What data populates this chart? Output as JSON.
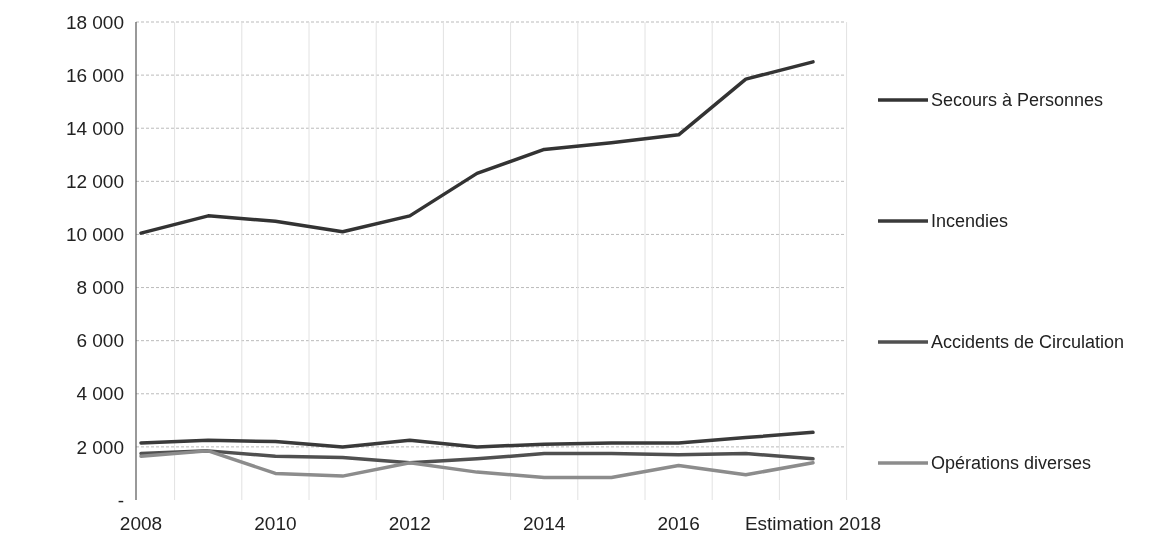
{
  "chart_data": {
    "type": "line",
    "categories": [
      "2008",
      null,
      "2010",
      null,
      "2012",
      null,
      "2014",
      null,
      "2016",
      null,
      "Estimation 2018"
    ],
    "series": [
      {
        "name": "Secours à Personnes",
        "color": "#333333",
        "values": [
          10050,
          10700,
          10500,
          10100,
          10700,
          12300,
          13200,
          13450,
          13750,
          15850,
          16500
        ]
      },
      {
        "name": "Incendies",
        "color": "#3a3a3a",
        "values": [
          2150,
          2250,
          2200,
          2000,
          2250,
          2000,
          2100,
          2150,
          2150,
          2350,
          2550
        ]
      },
      {
        "name": "Accidents de Circulation",
        "color": "#505050",
        "values": [
          1750,
          1850,
          1650,
          1600,
          1400,
          1550,
          1750,
          1750,
          1700,
          1750,
          1550
        ]
      },
      {
        "name": "Opérations diverses",
        "color": "#8c8c8c",
        "values": [
          1650,
          1850,
          1000,
          900,
          1400,
          1050,
          850,
          850,
          1300,
          950,
          1400
        ]
      }
    ],
    "ylim": [
      0,
      18000
    ],
    "yticks": [
      {
        "value": 0,
        "label": "-"
      },
      {
        "value": 2000,
        "label": "2 000"
      },
      {
        "value": 4000,
        "label": "4 000"
      },
      {
        "value": 6000,
        "label": "6 000"
      },
      {
        "value": 8000,
        "label": "8 000"
      },
      {
        "value": 10000,
        "label": "10 000"
      },
      {
        "value": 12000,
        "label": "12 000"
      },
      {
        "value": 14000,
        "label": "14 000"
      },
      {
        "value": 16000,
        "label": "16 000"
      },
      {
        "value": 18000,
        "label": "18 000"
      }
    ],
    "grid": true,
    "legend": "right",
    "marker": "none",
    "line_style": "solid"
  }
}
